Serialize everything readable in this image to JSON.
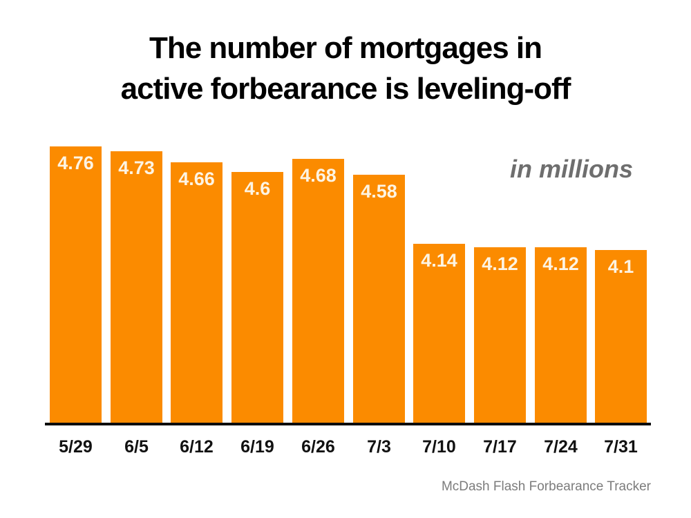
{
  "page": {
    "title_line1": "The number of mortgages in",
    "title_line2": "active forbearance is leveling-off",
    "units_note": "in millions",
    "source_note": "McDash Flash Forbearance Tracker"
  },
  "colors": {
    "bar": "#FB8B00",
    "bar_label": "#FDF4E3",
    "title": "#000000",
    "axis_line": "#0D0D0D",
    "x_label": "#111111",
    "units_note": "#6E6E6E",
    "source_note": "#7C7C7C"
  },
  "chart_data": {
    "type": "bar",
    "title": "The number of mortgages in active forbearance is leveling-off",
    "categories": [
      "5/29",
      "6/5",
      "6/12",
      "6/19",
      "6/26",
      "7/3",
      "7/10",
      "7/17",
      "7/24",
      "7/31"
    ],
    "values": [
      4.76,
      4.73,
      4.66,
      4.6,
      4.68,
      4.58,
      4.14,
      4.12,
      4.12,
      4.1
    ],
    "value_labels": [
      "4.76",
      "4.73",
      "4.66",
      "4.6",
      "4.68",
      "4.58",
      "4.14",
      "4.12",
      "4.12",
      "4.1"
    ],
    "xlabel": "",
    "ylabel": "in millions",
    "ylim": [
      3.0,
      4.8
    ],
    "grid": false,
    "legend": false,
    "data_labels_position": "inside-top",
    "annotation": "in millions",
    "source": "McDash Flash Forbearance Tracker"
  }
}
